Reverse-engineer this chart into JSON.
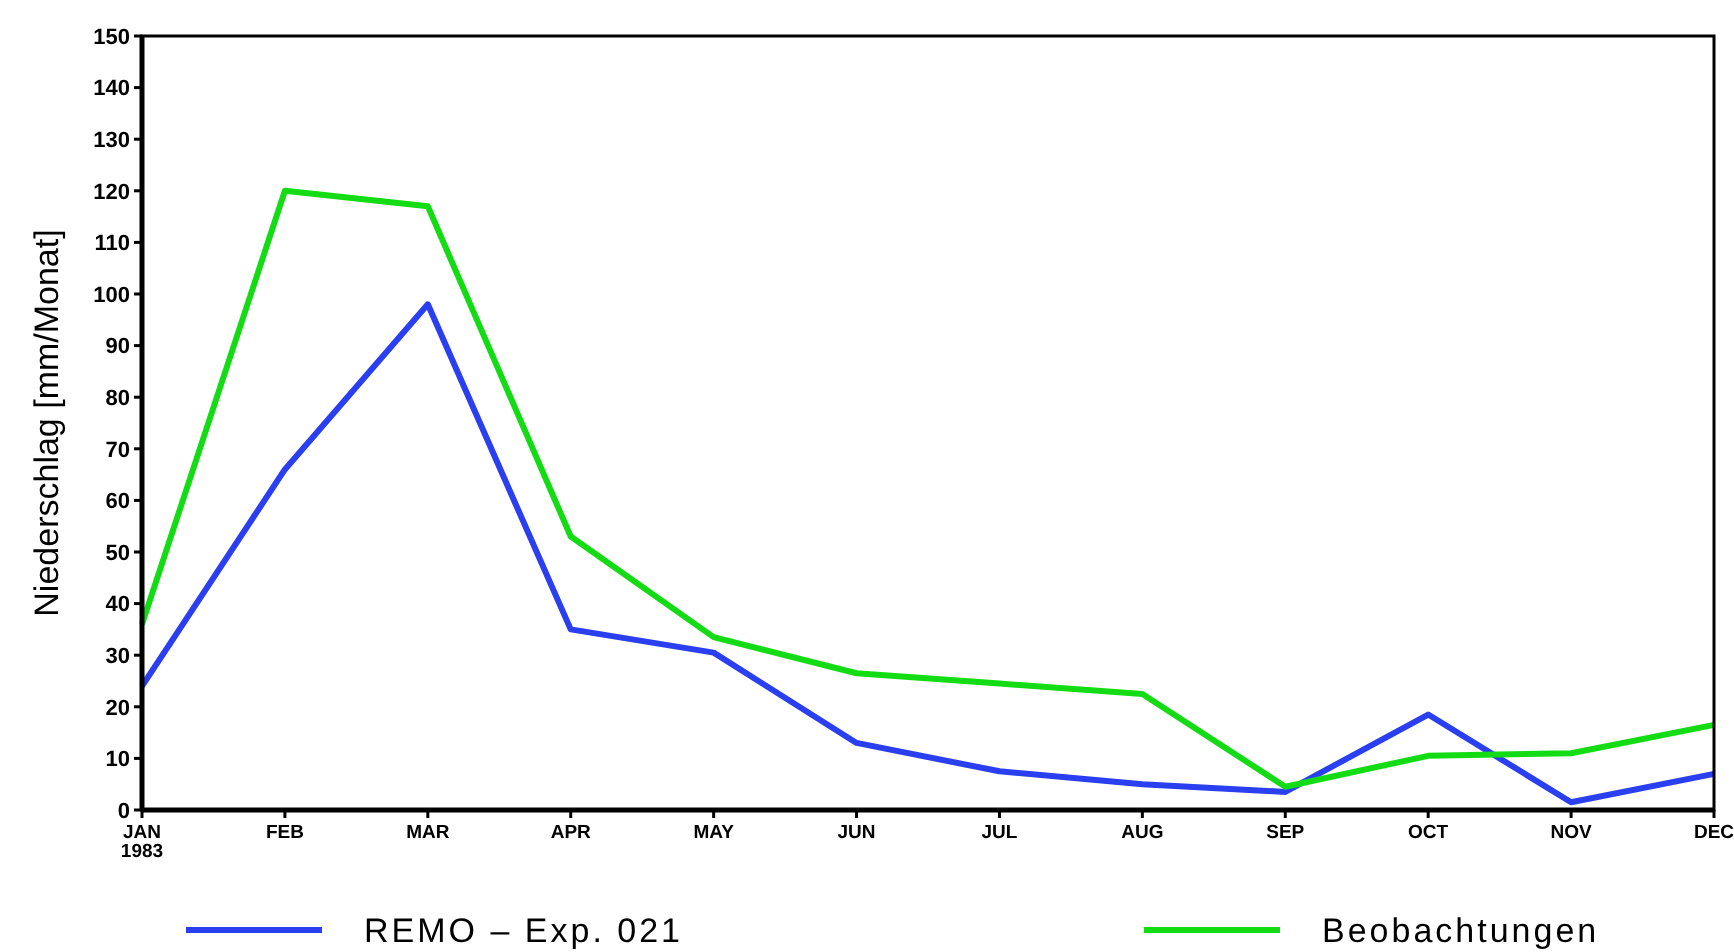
{
  "chart_data": {
    "type": "line",
    "ylabel": "Niederschlag [mm/Monat]",
    "categories": [
      "JAN\n1983",
      "FEB",
      "MAR",
      "APR",
      "MAY",
      "JUN",
      "JUL",
      "AUG",
      "SEP",
      "OCT",
      "NOV",
      "DEC"
    ],
    "ylim": [
      0,
      150
    ],
    "yticks": [
      0,
      10,
      20,
      30,
      40,
      50,
      60,
      70,
      80,
      90,
      100,
      110,
      120,
      130,
      140,
      150
    ],
    "grid": false,
    "legend": "bottom",
    "series": [
      {
        "name": "REMO – Exp. 021",
        "color": "#2a3ff0",
        "values": [
          24,
          66,
          98,
          35,
          30.5,
          13,
          7.5,
          5,
          3.5,
          18.5,
          1.5,
          7
        ]
      },
      {
        "name": "Beobachtungen",
        "color": "#14dc14",
        "values": [
          36,
          120,
          117,
          53,
          33.5,
          26.5,
          24.5,
          22.5,
          4.5,
          10.5,
          11,
          16.5
        ]
      }
    ]
  }
}
